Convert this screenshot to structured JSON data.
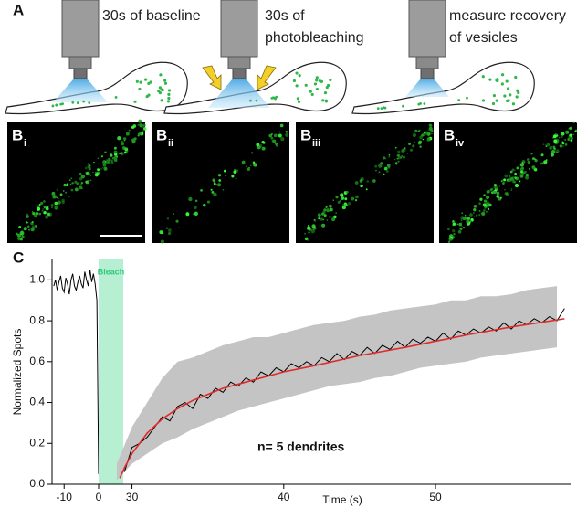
{
  "panel_a": {
    "label": "A",
    "steps": [
      {
        "lines": [
          "30s of baseline"
        ]
      },
      {
        "lines": [
          "30s of",
          "photobleaching"
        ]
      },
      {
        "lines": [
          "measure recovery",
          "of vesicles"
        ]
      }
    ]
  },
  "panel_b": {
    "label": "B",
    "images": [
      "i",
      "ii",
      "iii",
      "iv"
    ]
  },
  "panel_c": {
    "label": "C"
  },
  "chart_data": [
    {
      "type": "line",
      "ylabel": "Normalized Spots",
      "xlim": [
        -13.5,
        0
      ],
      "xticks": [
        -10,
        0
      ],
      "ylim": [
        0,
        1.1
      ],
      "yticks": [
        {
          "value": 0,
          "label": "0.0"
        },
        {
          "value": 0.2,
          "label": "0.2"
        },
        {
          "value": 0.4,
          "label": "0.4"
        },
        {
          "value": 0.6,
          "label": "0.6"
        },
        {
          "value": 0.8,
          "label": "0.8"
        },
        {
          "value": 1.0,
          "label": "1.0"
        }
      ],
      "series": [
        {
          "color": "#000000",
          "x": [
            -13,
            -12.5,
            -12,
            -11.5,
            -11,
            -10.5,
            -10,
            -9.5,
            -9,
            -8.5,
            -8,
            -7.5,
            -7,
            -6.5,
            -6,
            -5.5,
            -5,
            -4.5,
            -4,
            -3.5,
            -3,
            -2.5,
            -2,
            -1.5,
            -1,
            -0.5,
            0
          ],
          "values": [
            0.97,
            1.0,
            0.95,
            0.99,
            1.02,
            0.96,
            0.94,
            1.01,
            0.98,
            0.93,
            1.0,
            1.03,
            0.97,
            0.95,
            0.99,
            1.02,
            0.98,
            0.96,
            1.04,
            1.0,
            0.97,
            1.05,
            0.99,
            1.03,
            0.98,
            0.9,
            0.05
          ]
        }
      ]
    },
    {
      "type": "line",
      "xlabel": "Time (s)",
      "xlim": [
        27.8,
        58.9
      ],
      "xticks": [
        30,
        40,
        50
      ],
      "ylim": [
        0,
        1.1
      ],
      "bleach_label": "Bleach",
      "annotation": "n= 5 dendrites",
      "band": {
        "color": "#c4c4c4",
        "x": [
          29,
          30,
          31,
          32,
          33,
          34,
          35,
          36,
          37,
          38,
          39,
          40,
          41,
          42,
          43,
          44,
          45,
          46,
          47,
          48,
          49,
          50,
          51,
          52,
          53,
          54,
          55,
          56,
          57,
          58
        ],
        "lower": [
          0.02,
          0.1,
          0.15,
          0.2,
          0.23,
          0.27,
          0.3,
          0.33,
          0.36,
          0.38,
          0.4,
          0.42,
          0.44,
          0.46,
          0.48,
          0.49,
          0.5,
          0.52,
          0.53,
          0.55,
          0.57,
          0.58,
          0.59,
          0.6,
          0.62,
          0.63,
          0.64,
          0.65,
          0.66,
          0.67
        ],
        "upper": [
          0.1,
          0.28,
          0.4,
          0.52,
          0.6,
          0.62,
          0.65,
          0.68,
          0.7,
          0.72,
          0.72,
          0.74,
          0.76,
          0.78,
          0.79,
          0.8,
          0.82,
          0.83,
          0.85,
          0.86,
          0.87,
          0.88,
          0.9,
          0.9,
          0.92,
          0.92,
          0.93,
          0.95,
          0.96,
          0.97
        ]
      },
      "series": [
        {
          "color": "#000000",
          "x": [
            29.5,
            30,
            30.5,
            31,
            31.5,
            32,
            32.5,
            33,
            33.5,
            34,
            34.5,
            35,
            35.5,
            36,
            36.5,
            37,
            37.5,
            38,
            38.5,
            39,
            39.5,
            40,
            40.5,
            41,
            41.5,
            42,
            42.5,
            43,
            43.5,
            44,
            44.5,
            45,
            45.5,
            46,
            46.5,
            47,
            47.5,
            48,
            48.5,
            49,
            49.5,
            50,
            50.5,
            51,
            51.5,
            52,
            52.5,
            53,
            53.5,
            54,
            54.5,
            55,
            55.5,
            56,
            56.5,
            57,
            57.5,
            58,
            58.5
          ],
          "values": [
            0.06,
            0.18,
            0.2,
            0.23,
            0.28,
            0.33,
            0.31,
            0.38,
            0.4,
            0.37,
            0.44,
            0.42,
            0.47,
            0.45,
            0.5,
            0.48,
            0.52,
            0.5,
            0.55,
            0.53,
            0.57,
            0.55,
            0.59,
            0.57,
            0.6,
            0.58,
            0.62,
            0.6,
            0.64,
            0.61,
            0.65,
            0.63,
            0.67,
            0.64,
            0.68,
            0.66,
            0.7,
            0.67,
            0.71,
            0.69,
            0.72,
            0.7,
            0.74,
            0.71,
            0.75,
            0.73,
            0.76,
            0.74,
            0.77,
            0.75,
            0.79,
            0.76,
            0.8,
            0.78,
            0.81,
            0.79,
            0.82,
            0.8,
            0.86
          ]
        },
        {
          "color": "#e02b2b",
          "x": [
            29.2,
            29.5,
            30,
            30.5,
            31,
            32,
            33,
            34,
            35,
            36,
            38,
            40,
            42,
            45,
            48,
            50,
            52,
            55,
            58.5
          ],
          "values": [
            0.03,
            0.08,
            0.15,
            0.2,
            0.25,
            0.32,
            0.37,
            0.41,
            0.44,
            0.47,
            0.51,
            0.55,
            0.58,
            0.63,
            0.67,
            0.7,
            0.73,
            0.77,
            0.81
          ]
        }
      ]
    }
  ]
}
